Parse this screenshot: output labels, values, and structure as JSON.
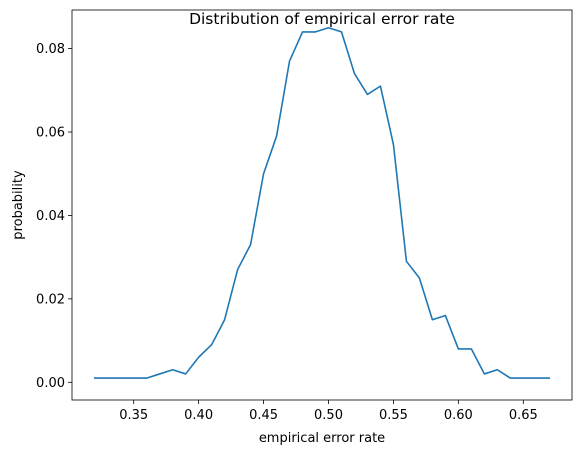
{
  "chart_data": {
    "type": "line",
    "title": "Distribution of empirical error rate",
    "xlabel": "empirical error rate",
    "ylabel": "probability",
    "xlim": [
      0.3025,
      0.6875
    ],
    "ylim": [
      -0.00425,
      0.08925
    ],
    "grid": false,
    "xticks": [
      0.35,
      0.4,
      0.45,
      0.5,
      0.55,
      0.6,
      0.65
    ],
    "xtick_labels": [
      "0.35",
      "0.40",
      "0.45",
      "0.50",
      "0.55",
      "0.60",
      "0.65"
    ],
    "yticks": [
      0.0,
      0.02,
      0.04,
      0.06,
      0.08
    ],
    "ytick_labels": [
      "0.00",
      "0.02",
      "0.04",
      "0.06",
      "0.08"
    ],
    "series": [
      {
        "color": "#1f77b4",
        "x": [
          0.32,
          0.33,
          0.34,
          0.35,
          0.36,
          0.37,
          0.38,
          0.39,
          0.4,
          0.41,
          0.42,
          0.43,
          0.44,
          0.45,
          0.46,
          0.47,
          0.48,
          0.49,
          0.5,
          0.51,
          0.52,
          0.53,
          0.54,
          0.55,
          0.56,
          0.57,
          0.58,
          0.59,
          0.6,
          0.61,
          0.62,
          0.63,
          0.64,
          0.65,
          0.66,
          0.67
        ],
        "y": [
          0.001,
          0.001,
          0.001,
          0.001,
          0.001,
          0.002,
          0.003,
          0.002,
          0.006,
          0.009,
          0.015,
          0.027,
          0.033,
          0.05,
          0.059,
          0.077,
          0.084,
          0.084,
          0.085,
          0.084,
          0.074,
          0.069,
          0.071,
          0.057,
          0.029,
          0.025,
          0.015,
          0.016,
          0.008,
          0.008,
          0.002,
          0.003,
          0.001,
          0.001,
          0.001,
          0.001
        ]
      }
    ]
  }
}
